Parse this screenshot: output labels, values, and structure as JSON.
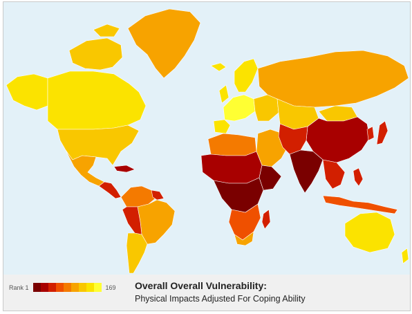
{
  "legend": {
    "min_label": "Rank 1",
    "max_label": "169",
    "colors": [
      "#7a0000",
      "#a80000",
      "#d21f00",
      "#ef5000",
      "#f47a00",
      "#f7a300",
      "#f9c700",
      "#fbe300",
      "#ffff33"
    ]
  },
  "title": {
    "main": "Overall Overall Vulnerability:",
    "sub": "Physical Impacts Adjusted For Coping Ability"
  },
  "ocean_color": "#e3f1f8"
}
